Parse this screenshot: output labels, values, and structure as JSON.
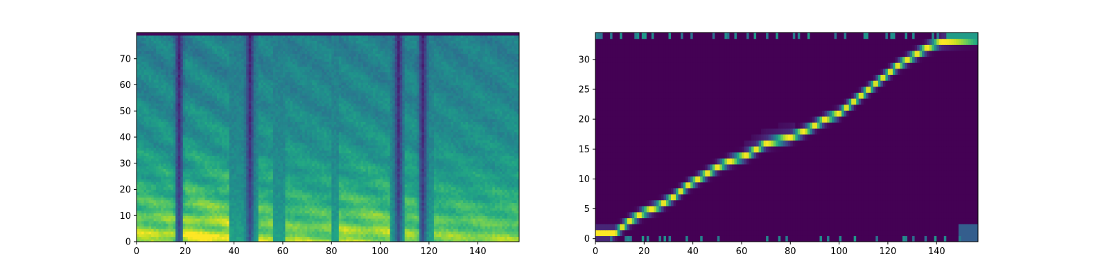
{
  "chart_data": [
    {
      "type": "heatmap",
      "title": "",
      "xlabel": "",
      "ylabel": "",
      "colormap": "viridis",
      "xlim": [
        0,
        157
      ],
      "ylim": [
        0,
        80
      ],
      "x_ticks": [
        0,
        20,
        40,
        60,
        80,
        100,
        120,
        140
      ],
      "y_ticks": [
        0,
        10,
        20,
        30,
        40,
        50,
        60,
        70
      ],
      "x_tick_labels": [
        "0",
        "20",
        "40",
        "60",
        "80",
        "100",
        "120",
        "140"
      ],
      "y_tick_labels": [
        "0",
        "10",
        "20",
        "30",
        "40",
        "50",
        "60",
        "70"
      ],
      "description_of_values": "mel spectrogram (80 mel bins x 157 frames)",
      "silence_frames": [
        17,
        46,
        107,
        117
      ],
      "voiced_segments": [
        {
          "start": 0,
          "end": 16,
          "strength": 0.85
        },
        {
          "start": 19,
          "end": 38,
          "strength": 1.0
        },
        {
          "start": 50,
          "end": 56,
          "strength": 0.75
        },
        {
          "start": 61,
          "end": 80,
          "strength": 0.65
        },
        {
          "start": 83,
          "end": 104,
          "strength": 0.8
        },
        {
          "start": 110,
          "end": 116,
          "strength": 0.7
        },
        {
          "start": 122,
          "end": 157,
          "strength": 0.6
        }
      ]
    },
    {
      "type": "heatmap",
      "title": "",
      "xlabel": "",
      "ylabel": "",
      "colormap": "viridis",
      "xlim": [
        0,
        157
      ],
      "ylim": [
        -0.5,
        34.5
      ],
      "x_ticks": [
        0,
        20,
        40,
        60,
        80,
        100,
        120,
        140
      ],
      "y_ticks": [
        0,
        5,
        10,
        15,
        20,
        25,
        30
      ],
      "x_tick_labels": [
        "0",
        "20",
        "40",
        "60",
        "80",
        "100",
        "120",
        "140"
      ],
      "y_tick_labels": [
        "0",
        "5",
        "10",
        "15",
        "20",
        "25",
        "30"
      ],
      "description_of_values": "attention alignment (34 encoder steps x 157 decoder frames)",
      "alignment_path": [
        [
          0,
          1
        ],
        [
          8,
          1
        ],
        [
          14,
          3
        ],
        [
          20,
          4.5
        ],
        [
          26,
          5.5
        ],
        [
          32,
          7
        ],
        [
          38,
          9
        ],
        [
          44,
          10.5
        ],
        [
          50,
          12
        ],
        [
          55,
          13
        ],
        [
          62,
          14
        ],
        [
          70,
          16
        ],
        [
          80,
          17
        ],
        [
          88,
          18.5
        ],
        [
          94,
          20
        ],
        [
          100,
          21
        ],
        [
          106,
          23
        ],
        [
          112,
          25
        ],
        [
          118,
          27
        ],
        [
          124,
          29
        ],
        [
          130,
          30.5
        ],
        [
          136,
          32
        ],
        [
          142,
          33
        ],
        [
          157,
          33.5
        ]
      ]
    }
  ]
}
